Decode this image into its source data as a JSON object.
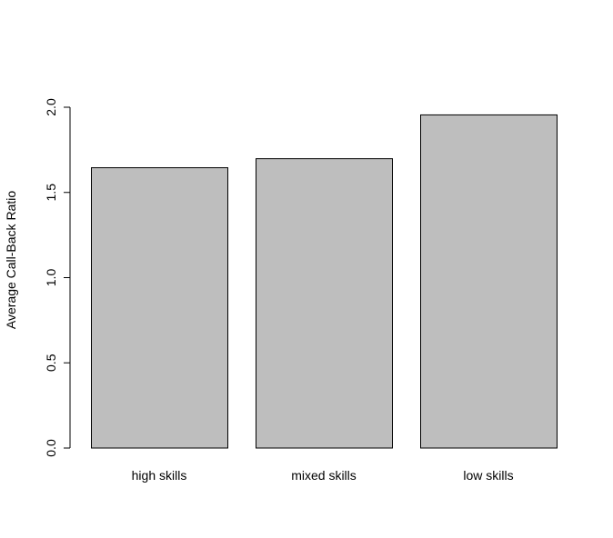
{
  "chart_data": {
    "type": "bar",
    "categories": [
      "high skills",
      "mixed skills",
      "low skills"
    ],
    "values": [
      1.645,
      1.698,
      1.955
    ],
    "title": "",
    "xlabel": "",
    "ylabel": "Average Call-Back Ratio",
    "ylim": [
      0,
      2.0
    ],
    "yticks": [
      "0.0",
      "0.5",
      "1.0",
      "1.5",
      "2.0"
    ],
    "grid": false,
    "legend": "none",
    "bar_fill": "#bebebe",
    "bar_stroke": "#000000"
  }
}
